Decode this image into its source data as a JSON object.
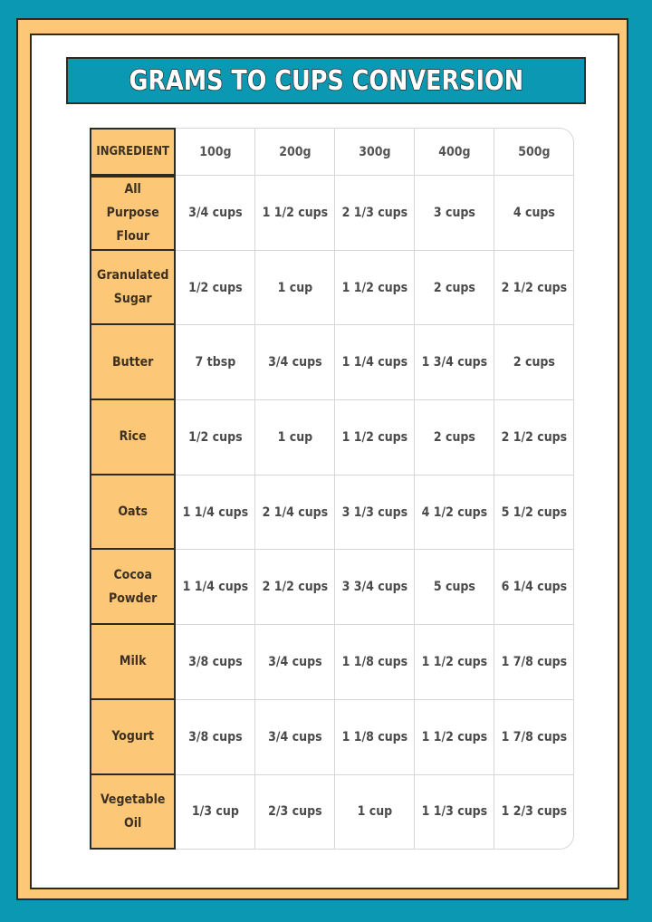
{
  "title": "GRAMS TO CUPS CONVERSION",
  "colors": {
    "background": "#0b98b2",
    "frame": "#fcc878",
    "outline": "#2d2a22"
  },
  "table": {
    "headers": [
      "INGREDIENT",
      "100g",
      "200g",
      "300g",
      "400g",
      "500g"
    ],
    "rows": [
      {
        "ingredient": "All Purpose Flour",
        "values": [
          "3/4 cups",
          "1 1/2 cups",
          "2 1/3 cups",
          "3 cups",
          "4 cups"
        ]
      },
      {
        "ingredient": "Granulated Sugar",
        "values": [
          "1/2 cups",
          "1 cup",
          "1 1/2 cups",
          "2 cups",
          "2 1/2 cups"
        ]
      },
      {
        "ingredient": "Butter",
        "values": [
          "7 tbsp",
          "3/4 cups",
          "1 1/4 cups",
          "1 3/4 cups",
          "2 cups"
        ]
      },
      {
        "ingredient": "Rice",
        "values": [
          "1/2 cups",
          "1 cup",
          "1 1/2 cups",
          "2 cups",
          "2 1/2 cups"
        ]
      },
      {
        "ingredient": "Oats",
        "values": [
          "1 1/4 cups",
          "2 1/4 cups",
          "3 1/3 cups",
          "4 1/2 cups",
          "5 1/2 cups"
        ]
      },
      {
        "ingredient": "Cocoa Powder",
        "values": [
          "1 1/4 cups",
          "2 1/2 cups",
          "3 3/4 cups",
          "5 cups",
          "6 1/4 cups"
        ]
      },
      {
        "ingredient": "Milk",
        "values": [
          "3/8 cups",
          "3/4 cups",
          "1 1/8 cups",
          "1 1/2 cups",
          "1 7/8 cups"
        ]
      },
      {
        "ingredient": "Yogurt",
        "values": [
          "3/8 cups",
          "3/4 cups",
          "1 1/8 cups",
          "1 1/2 cups",
          "1 7/8 cups"
        ]
      },
      {
        "ingredient": "Vegetable Oil",
        "values": [
          "1/3 cup",
          "2/3 cups",
          "1 cup",
          "1 1/3 cups",
          "1 2/3 cups"
        ]
      }
    ]
  }
}
